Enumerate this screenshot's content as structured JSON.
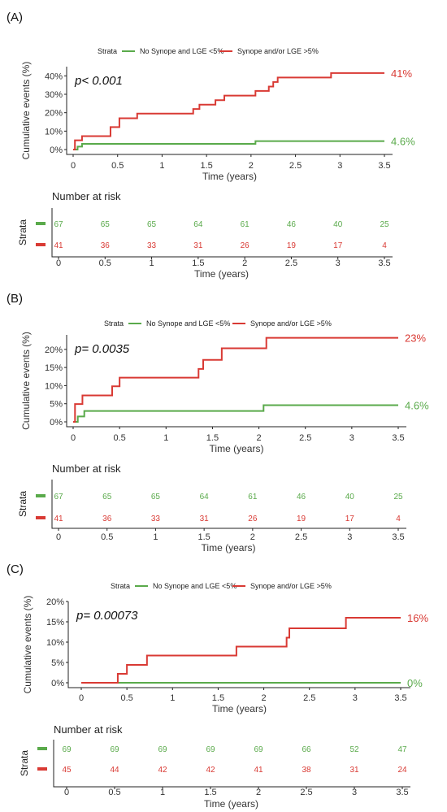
{
  "colors": {
    "green": "#5aaa4b",
    "red": "#d93a34"
  },
  "legend": {
    "title": "Strata",
    "entries": [
      "No Synope and LGE <5%",
      "Synope and/or LGE >5%"
    ]
  },
  "risk_table": {
    "title": "Number at risk",
    "ylabel": "Strata",
    "xlabel": "Time (years)"
  },
  "chart_data": [
    {
      "panel": "(A)",
      "type": "line",
      "step": true,
      "xlabel": "Time (years)",
      "ylabel": "Cumulative events (%)",
      "xlim": [
        0,
        3.5
      ],
      "ylim": [
        0,
        45
      ],
      "xticks": [
        "0",
        "0.5",
        "1",
        "1.5",
        "2",
        "2.5",
        "3",
        "3.5"
      ],
      "yticks": [
        "0%",
        "10%",
        "20%",
        "30%",
        "40%"
      ],
      "ytick_values": [
        0,
        10,
        20,
        30,
        40
      ],
      "pvalue": "p< 0.001",
      "series": [
        {
          "name": "No Synope and LGE <5%",
          "color": "#5aaa4b",
          "end_label": "4.6%",
          "x": [
            0,
            0.05,
            0.1,
            2.05,
            3.5
          ],
          "y": [
            0,
            1.6,
            3.1,
            4.6,
            4.6
          ]
        },
        {
          "name": "Synope and/or LGE >5%",
          "color": "#d93a34",
          "end_label": "41%",
          "x": [
            0,
            0.02,
            0.1,
            0.42,
            0.52,
            0.72,
            1.35,
            1.42,
            1.6,
            1.7,
            2.05,
            2.2,
            2.25,
            2.3,
            2.9,
            3.5
          ],
          "y": [
            0,
            5,
            7.3,
            12.2,
            17,
            19.5,
            22,
            24.4,
            26.8,
            29.3,
            31.8,
            34.2,
            36.7,
            39.1,
            41.5,
            41.5
          ]
        }
      ],
      "risk": {
        "times": [
          "0",
          "0.5",
          "1",
          "1.5",
          "2",
          "2.5",
          "3",
          "3.5"
        ],
        "rows": [
          {
            "color": "#5aaa4b",
            "values": [
              "67",
              "65",
              "65",
              "64",
              "61",
              "46",
              "40",
              "25"
            ]
          },
          {
            "color": "#d93a34",
            "values": [
              "41",
              "36",
              "33",
              "31",
              "26",
              "19",
              "17",
              "4"
            ]
          }
        ]
      }
    },
    {
      "panel": "(B)",
      "type": "line",
      "step": true,
      "xlabel": "Time (years)",
      "ylabel": "Cumulative events (%)",
      "xlim": [
        0,
        3.5
      ],
      "ylim": [
        0,
        24
      ],
      "xticks": [
        "0",
        "0.5",
        "1",
        "1.5",
        "2",
        "2.5",
        "3",
        "3.5"
      ],
      "yticks": [
        "0%",
        "5%",
        "10%",
        "15%",
        "20%"
      ],
      "ytick_values": [
        0,
        5,
        10,
        15,
        20
      ],
      "pvalue": "p= 0.0035",
      "series": [
        {
          "name": "No Synope and LGE <5%",
          "color": "#5aaa4b",
          "end_label": "4.6%",
          "x": [
            0,
            0.05,
            0.12,
            2.05,
            3.5
          ],
          "y": [
            0,
            1.5,
            3.0,
            4.6,
            4.6
          ]
        },
        {
          "name": "Synope and/or LGE >5%",
          "color": "#d93a34",
          "end_label": "23%",
          "x": [
            0,
            0.02,
            0.1,
            0.42,
            0.5,
            1.35,
            1.4,
            1.6,
            2.08,
            3.5
          ],
          "y": [
            0,
            4.9,
            7.3,
            9.8,
            12.2,
            14.6,
            17.1,
            20.3,
            23.2,
            23.2
          ]
        }
      ],
      "risk": {
        "times": [
          "0",
          "0.5",
          "1",
          "1.5",
          "2",
          "2.5",
          "3",
          "3.5"
        ],
        "rows": [
          {
            "color": "#5aaa4b",
            "values": [
              "67",
              "65",
              "65",
              "64",
              "61",
              "46",
              "40",
              "25"
            ]
          },
          {
            "color": "#d93a34",
            "values": [
              "41",
              "36",
              "33",
              "31",
              "26",
              "19",
              "17",
              "4"
            ]
          }
        ]
      }
    },
    {
      "panel": "(C)",
      "type": "line",
      "step": true,
      "xlabel": "Time (years)",
      "ylabel": "Cumulative events (%)",
      "xlim": [
        0,
        3.5
      ],
      "ylim": [
        0,
        20
      ],
      "xticks": [
        "0",
        "0.5",
        "1",
        "1.5",
        "2",
        "2.5",
        "3",
        "3.5"
      ],
      "yticks": [
        "0%",
        "5%",
        "10%",
        "15%",
        "20%"
      ],
      "ytick_values": [
        0,
        5,
        10,
        15,
        20
      ],
      "pvalue": "p= 0.00073",
      "series": [
        {
          "name": "No Synope and LGE <5%",
          "color": "#5aaa4b",
          "end_label": "0%",
          "x": [
            0,
            3.5
          ],
          "y": [
            0,
            0
          ]
        },
        {
          "name": "Synope and/or LGE >5%",
          "color": "#d93a34",
          "end_label": "16%",
          "x": [
            0,
            0.4,
            0.5,
            0.72,
            1.7,
            2.25,
            2.28,
            2.9,
            3.5
          ],
          "y": [
            0,
            2.2,
            4.4,
            6.7,
            8.9,
            11.1,
            13.4,
            16.0,
            16.0
          ]
        }
      ],
      "risk": {
        "times": [
          "0",
          "0.5",
          "1",
          "1.5",
          "2",
          "2.5",
          "3",
          "3.5"
        ],
        "rows": [
          {
            "color": "#5aaa4b",
            "values": [
              "69",
              "69",
              "69",
              "69",
              "69",
              "66",
              "52",
              "47"
            ]
          },
          {
            "color": "#d93a34",
            "values": [
              "45",
              "44",
              "42",
              "42",
              "41",
              "38",
              "31",
              "24"
            ]
          }
        ]
      }
    }
  ]
}
